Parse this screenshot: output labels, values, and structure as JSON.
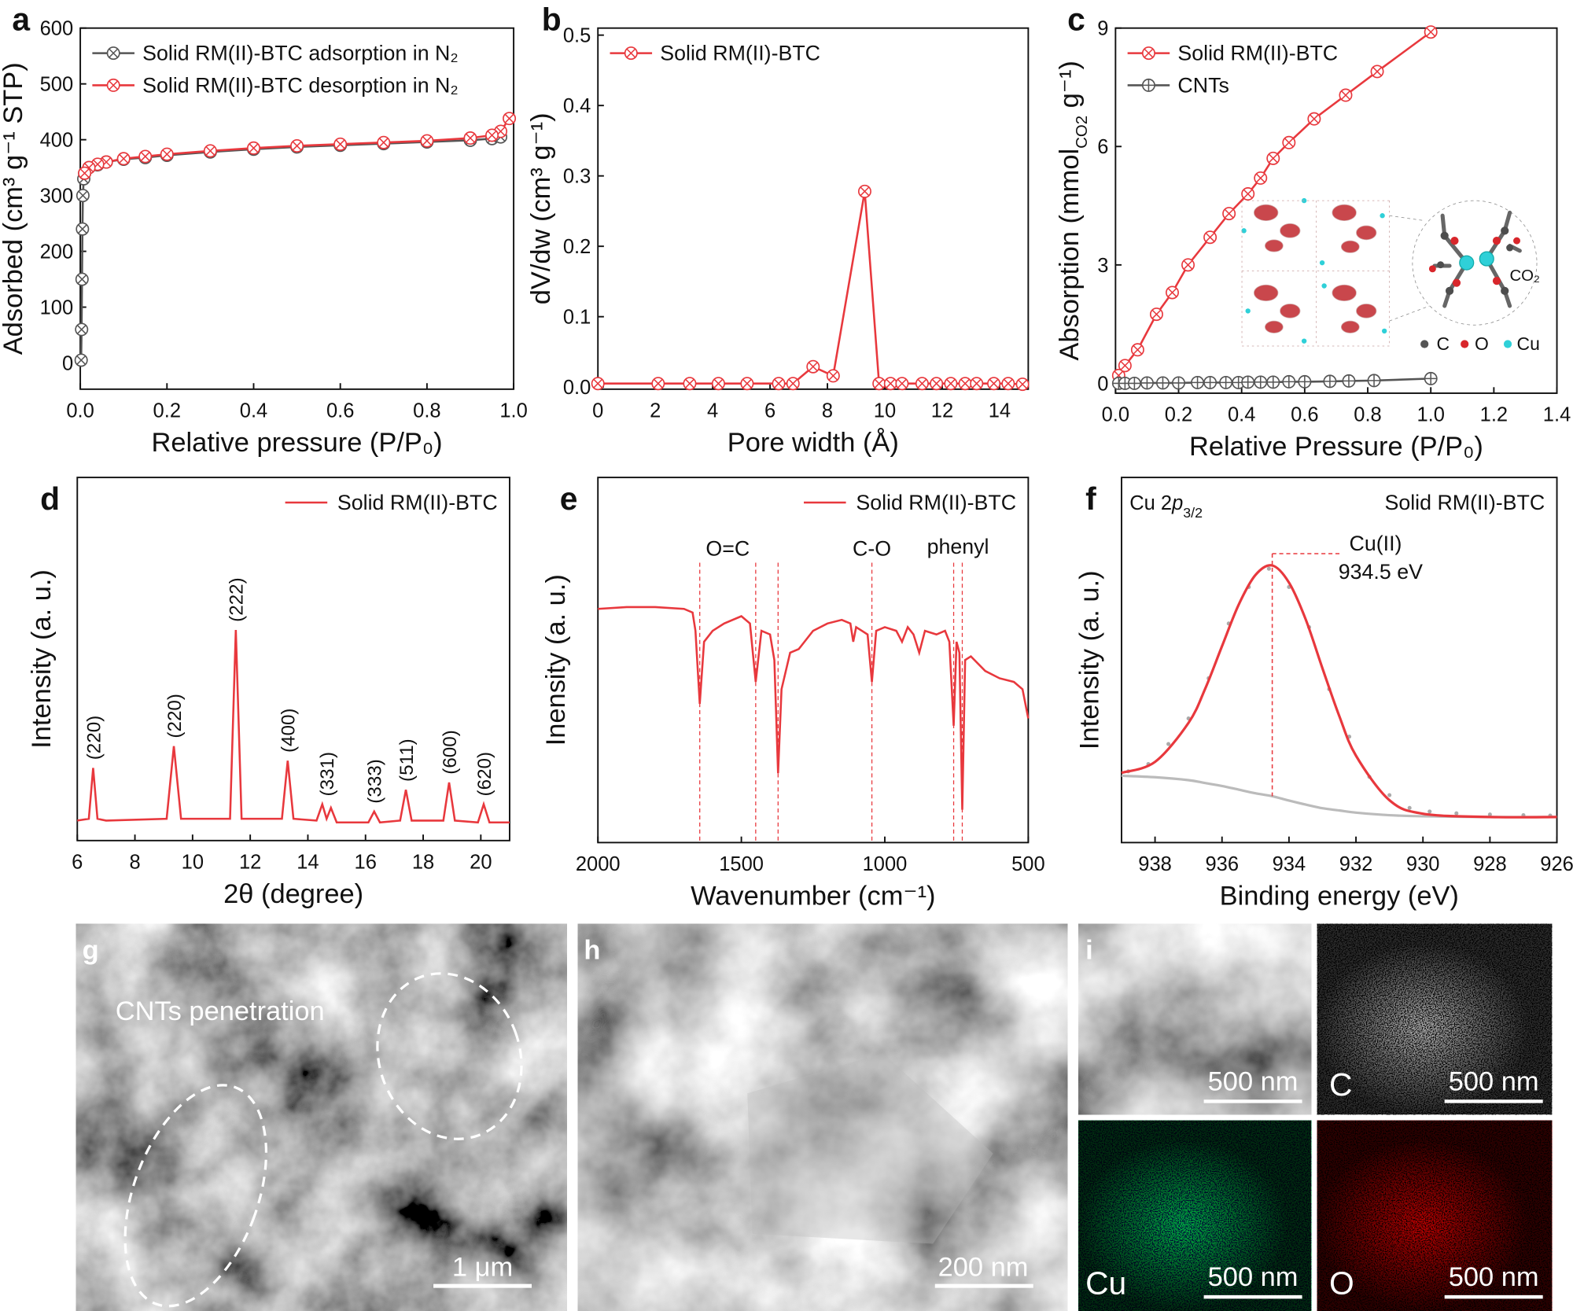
{
  "chart_data": [
    {
      "type": "line",
      "label": "a",
      "xlabel": "Relative pressure (P/P₀)",
      "ylabel": [
        "Adsorbed (cm³ g⁻¹ STP)"
      ],
      "xlim": [
        0,
        1
      ],
      "ylim": [
        -47,
        600
      ],
      "xticks": [
        {
          "value": 0,
          "label": "0.0"
        },
        0.2,
        0.4,
        0.6,
        0.8,
        {
          "value": 1,
          "label": "1.0"
        }
      ],
      "yticks": [
        0,
        100,
        200,
        300,
        400,
        500,
        600
      ],
      "legend": "upper left",
      "series": [
        {
          "name": "Solid RM(II)-BTC adsorption in N₂",
          "color": "#555555",
          "marker": "otimes",
          "x": [
            0.002,
            0.003,
            0.004,
            0.005,
            0.006,
            0.008,
            0.01,
            0.02,
            0.04,
            0.06,
            0.1,
            0.15,
            0.2,
            0.3,
            0.4,
            0.5,
            0.6,
            0.7,
            0.8,
            0.9,
            0.95,
            0.97
          ],
          "values": [
            5,
            60,
            150,
            240,
            300,
            330,
            340,
            350,
            355,
            360,
            365,
            368,
            372,
            378,
            383,
            387,
            390,
            393,
            396,
            399,
            402,
            405
          ]
        },
        {
          "name": "Solid RM(II)-BTC desorption in N₂",
          "color": "#e8383d",
          "marker": "otimes",
          "x": [
            0.99,
            0.97,
            0.95,
            0.9,
            0.8,
            0.7,
            0.6,
            0.5,
            0.4,
            0.3,
            0.2,
            0.15,
            0.1,
            0.06,
            0.04,
            0.02,
            0.01
          ],
          "values": [
            438,
            415,
            408,
            403,
            398,
            395,
            392,
            389,
            385,
            380,
            374,
            370,
            366,
            360,
            356,
            350,
            340
          ]
        }
      ]
    },
    {
      "type": "line",
      "label": "b",
      "xlabel": "Pore width (Å)",
      "ylabel": [
        "dV/dw (cm³ g⁻¹)"
      ],
      "xlim": [
        0,
        15
      ],
      "ylim": [
        -0.003,
        0.51
      ],
      "xticks": [
        0,
        2,
        4,
        6,
        8,
        10,
        12,
        14
      ],
      "yticks": [
        {
          "value": 0,
          "label": "0.0"
        },
        0.1,
        0.2,
        0.3,
        0.4,
        0.5
      ],
      "legend": "upper left",
      "series": [
        {
          "name": "Solid RM(II)-BTC",
          "color": "#e8383d",
          "marker": "otimes",
          "x": [
            0,
            2.1,
            3.2,
            4.2,
            5.2,
            6.3,
            6.8,
            7.5,
            8.2,
            9.3,
            9.8,
            10.2,
            10.6,
            11.3,
            11.8,
            12.3,
            12.8,
            13.2,
            13.8,
            14.3,
            14.8
          ],
          "values": [
            0.005,
            0.005,
            0.005,
            0.005,
            0.005,
            0.005,
            0.005,
            0.029,
            0.016,
            0.278,
            0.005,
            0.005,
            0.005,
            0.005,
            0.005,
            0.005,
            0.005,
            0.005,
            0.005,
            0.005,
            0.004
          ]
        }
      ]
    },
    {
      "type": "line",
      "label": "c",
      "xlabel": "Relative Pressure (P/P₀)",
      "ylabel": [
        "Absorption (mmol",
        "CO2",
        " g⁻¹)"
      ],
      "xlim": [
        0,
        1.4
      ],
      "ylim": [
        -0.25,
        9
      ],
      "xticks": [
        {
          "value": 0,
          "label": "0.0"
        },
        0.2,
        0.4,
        0.6,
        0.8,
        {
          "value": 1,
          "label": "1.0"
        },
        1.2,
        1.4
      ],
      "yticks": [
        0,
        3,
        6,
        9
      ],
      "legend": "upper left",
      "inset_labels": [
        "CO₂",
        "C",
        "O",
        "Cu"
      ],
      "series": [
        {
          "name": "Solid RM(II)-BTC",
          "color": "#e8383d",
          "marker": "otimes",
          "x": [
            0.01,
            0.03,
            0.07,
            0.13,
            0.18,
            0.23,
            0.3,
            0.36,
            0.42,
            0.46,
            0.5,
            0.55,
            0.63,
            0.73,
            0.83,
            1.0
          ],
          "values": [
            0.2,
            0.45,
            0.85,
            1.75,
            2.3,
            3.0,
            3.7,
            4.3,
            4.8,
            5.2,
            5.7,
            6.1,
            6.7,
            7.3,
            7.9,
            8.9
          ]
        },
        {
          "name": "CNTs",
          "color": "#555555",
          "marker": "oplus",
          "x": [
            0.01,
            0.03,
            0.06,
            0.1,
            0.15,
            0.2,
            0.26,
            0.3,
            0.35,
            0.39,
            0.42,
            0.46,
            0.5,
            0.55,
            0.6,
            0.68,
            0.74,
            0.82,
            1.0
          ],
          "values": [
            0,
            0,
            0,
            0.01,
            0.01,
            0.01,
            0.02,
            0.02,
            0.02,
            0.02,
            0.03,
            0.03,
            0.03,
            0.04,
            0.04,
            0.05,
            0.06,
            0.07,
            0.12
          ]
        }
      ]
    },
    {
      "type": "line",
      "label": "d",
      "xlabel": "2θ (degree)",
      "ylabel": [
        "Intensity (a. u.)"
      ],
      "xlim": [
        6,
        21
      ],
      "ylim": [
        0,
        100
      ],
      "xticks": [
        6,
        8,
        10,
        12,
        14,
        16,
        18,
        20
      ],
      "legend": "upper right",
      "x": [
        6,
        6.4,
        6.55,
        6.7,
        7,
        9.1,
        9.35,
        9.6,
        11.3,
        11.5,
        11.7,
        13.1,
        13.3,
        13.5,
        14.3,
        14.5,
        14.65,
        14.8,
        15,
        16.1,
        16.3,
        16.5,
        17.2,
        17.4,
        17.6,
        18.7,
        18.9,
        19.1,
        19.9,
        20.1,
        20.3,
        21
      ],
      "annotations": [
        "(220)",
        "(220)",
        "(222)",
        "(400)",
        "(331)",
        "(333)",
        "(511)",
        "(600)",
        "(620)"
      ],
      "series": [
        {
          "name": "Solid RM(II)-BTC",
          "color": "#e8383d",
          "values": [
            5.5,
            6,
            20,
            6,
            5.5,
            6,
            26,
            6,
            6,
            58,
            6,
            6,
            22,
            6,
            5.5,
            10,
            6,
            9,
            5,
            5,
            8,
            5,
            5.5,
            14,
            5.5,
            5.5,
            16,
            5.5,
            5,
            10,
            5,
            5
          ]
        }
      ]
    },
    {
      "type": "line",
      "label": "e",
      "xlabel": "Wavenumber (cm⁻¹)",
      "ylabel": [
        "Inensity (a. u.)"
      ],
      "xlim": [
        2000,
        500
      ],
      "ylim": [
        0,
        100
      ],
      "xticks": [
        2000,
        1500,
        1000,
        500
      ],
      "legend": "upper right",
      "x": [
        2000,
        1900,
        1800,
        1700,
        1670,
        1660,
        1645,
        1630,
        1600,
        1560,
        1500,
        1470,
        1450,
        1430,
        1400,
        1385,
        1372,
        1360,
        1330,
        1300,
        1250,
        1200,
        1150,
        1120,
        1110,
        1100,
        1080,
        1060,
        1045,
        1030,
        1000,
        960,
        940,
        920,
        900,
        880,
        860,
        820,
        790,
        775,
        760,
        750,
        740,
        730,
        720,
        700,
        650,
        600,
        550,
        520,
        500
      ],
      "vlines": [
        1645,
        1450,
        1372,
        1045,
        760,
        730
      ],
      "annotations": [
        "O=C",
        "C-O",
        "phenyl"
      ],
      "series": [
        {
          "name": "Solid RM(II)-BTC",
          "color": "#e8383d",
          "values": [
            64,
            64.5,
            64.5,
            64,
            63,
            58,
            38,
            55,
            58,
            60,
            62,
            60,
            44,
            58,
            57,
            50,
            19,
            42,
            52,
            53,
            58,
            60,
            61,
            60,
            55,
            59,
            58,
            57,
            44,
            58,
            59,
            58,
            55,
            59,
            57,
            52,
            58,
            57,
            58,
            55,
            32,
            55,
            52,
            9,
            50,
            51,
            47,
            45,
            44,
            42,
            34
          ]
        }
      ]
    },
    {
      "type": "line",
      "label": "f",
      "xlabel": "Binding energy (eV)",
      "ylabel": [
        "Intensity (a. u.)"
      ],
      "xlim": [
        939,
        926
      ],
      "ylim": [
        -7,
        93
      ],
      "xticks": [
        938,
        936,
        934,
        932,
        930,
        928,
        926
      ],
      "core_level": [
        "Cu 2",
        "p",
        "3/2"
      ],
      "annotations": [
        "Cu(II)",
        "934.5 eV",
        "Solid RM(II)-BTC"
      ],
      "vline": 934.5,
      "x": [
        939,
        938,
        937,
        936.5,
        936,
        935.5,
        935,
        934.5,
        934,
        933.5,
        933,
        932.5,
        932,
        931,
        930,
        928,
        926
      ],
      "series": [
        {
          "color": "#aaaaaa",
          "mode": "markers",
          "x": [
            938.8,
            938.2,
            937.6,
            937,
            936.4,
            935.8,
            935.2,
            934.6,
            934,
            933.4,
            932.8,
            932.2,
            931.6,
            931,
            930.4,
            929.8,
            929,
            928,
            927,
            926.2
          ],
          "values": [
            12.5,
            14.5,
            20,
            27,
            38,
            53,
            63,
            68,
            63,
            52,
            35,
            22,
            11,
            6,
            2.5,
            1.5,
            1,
            0.7,
            0.5,
            0.4
          ]
        },
        {
          "color": "#bbbbbb",
          "smooth": true,
          "values": [
            11.3,
            10.9,
            10.1,
            9.3,
            8.5,
            7.5,
            6.5,
            5.7,
            4.5,
            3.4,
            2.4,
            1.8,
            1.2,
            0.5,
            0.2,
            0,
            0
          ]
        },
        {
          "color": "#e8383d",
          "smooth": true,
          "values": [
            12.1,
            15.1,
            25.8,
            35.2,
            46.8,
            58.2,
            66.3,
            68.9,
            64.2,
            54.1,
            40.7,
            27.7,
            16.8,
            4.6,
            0.9,
            0,
            0
          ]
        }
      ]
    }
  ],
  "images": {
    "g": {
      "label": "g",
      "annotation": "CNTs penetration",
      "scale_bar": "1 μm"
    },
    "h": {
      "label": "h",
      "scale_bar": "200 nm"
    },
    "i": {
      "label": "i",
      "panels": [
        {
          "scale_bar": "500 nm"
        },
        {
          "element": "C",
          "scale_bar": "500 nm"
        },
        {
          "element": "Cu",
          "scale_bar": "500 nm"
        },
        {
          "element": "O",
          "scale_bar": "500 nm"
        }
      ]
    }
  }
}
